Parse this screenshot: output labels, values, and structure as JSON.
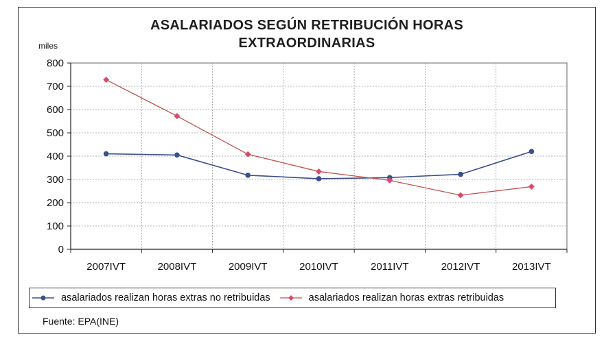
{
  "chart_data": {
    "type": "line",
    "title_lines": [
      "ASALARIADOS SEGÚN RETRIBUCIÓN HORAS",
      "EXTRAORDINARIAS"
    ],
    "ylabel": "miles",
    "categories": [
      "2007IVT",
      "2008IVT",
      "2009IVT",
      "2010IVT",
      "2011IVT",
      "2012IVT",
      "2013IVT"
    ],
    "ylim": [
      0,
      800
    ],
    "yticks": [
      0,
      100,
      200,
      300,
      400,
      500,
      600,
      700,
      800
    ],
    "grid": true,
    "legend_position": "bottom",
    "series": [
      {
        "name": "asalariados realizan horas extras no retribuidas",
        "color": "#3b4f8c",
        "marker": "circle",
        "values": [
          410,
          405,
          318,
          303,
          308,
          322,
          420
        ]
      },
      {
        "name": "asalariados realizan horas extras retribuidas",
        "color": "#c0504d",
        "marker_color": "#d94a6a",
        "marker": "diamond",
        "values": [
          728,
          572,
          408,
          334,
          296,
          232,
          269
        ]
      }
    ]
  },
  "source": "Fuente: EPA(INE)"
}
